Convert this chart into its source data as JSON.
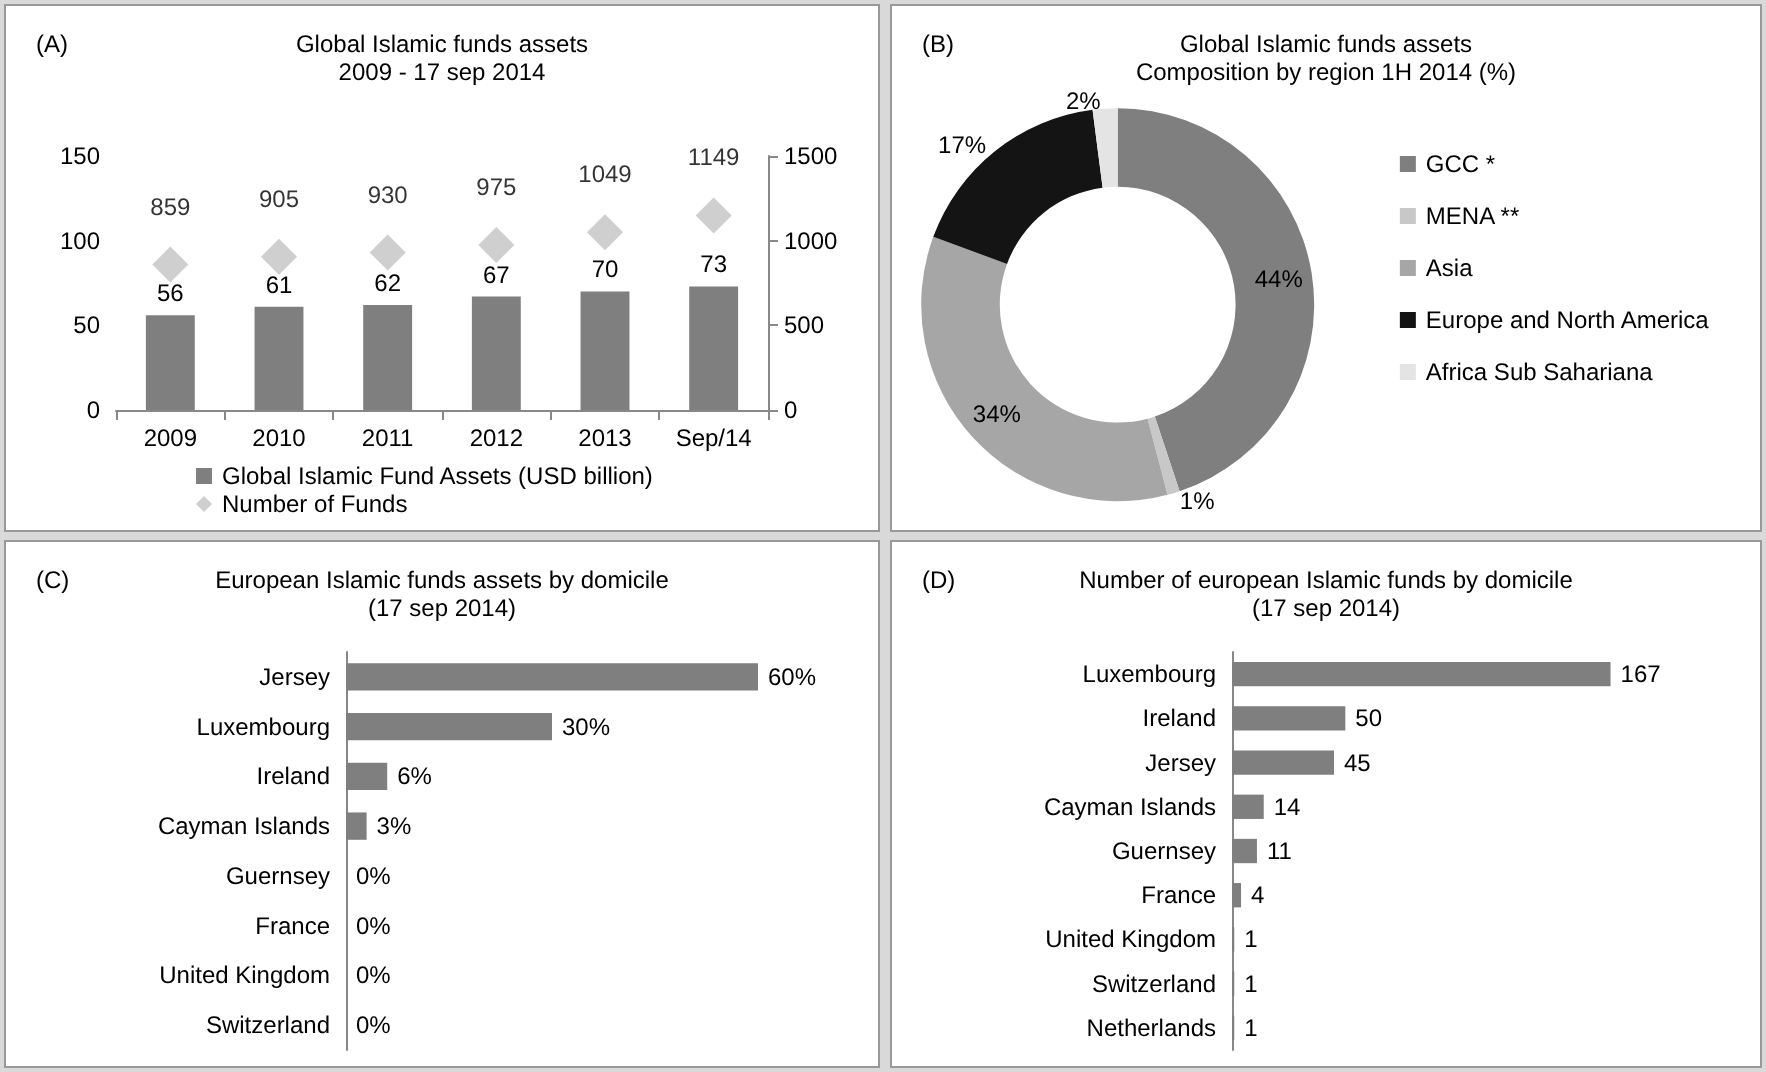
{
  "chart_data": [
    {
      "type": "bar",
      "title": "Global Islamic funds assets",
      "subtitle": "2009 - 17 sep 2014",
      "annotations": [
        "(A)"
      ],
      "categories": [
        "2009",
        "2010",
        "2011",
        "2012",
        "2013",
        "Sep/14"
      ],
      "series": [
        {
          "type": "bar",
          "name": "Global Islamic Fund Assets (USD billion)",
          "color": "#7f7f7f",
          "values": [
            56,
            61,
            62,
            67,
            70,
            73
          ]
        },
        {
          "type": "scatter",
          "axis": "y2",
          "name": "Number of Funds",
          "color": "#c3c3c3",
          "values": [
            859,
            905,
            930,
            975,
            1049,
            1149
          ]
        }
      ],
      "marker": "diamond",
      "data_labels": true,
      "legend": "bottom",
      "ylim": [
        0,
        150
      ],
      "yticks": [
        0,
        50,
        100,
        150
      ],
      "y2lim": [
        0,
        1500
      ],
      "y2ticks": [
        0,
        500,
        1000,
        1500
      ]
    },
    {
      "type": "donut",
      "title": "Global Islamic funds assets",
      "subtitle": "Composition by region 1H 2014 (%)",
      "annotations": [
        "(B)"
      ],
      "categories": [
        "GCC *",
        "MENA **",
        "Asia",
        "Europe and North America",
        "Africa Sub Sahariana"
      ],
      "values": [
        44,
        1,
        34,
        17,
        2
      ],
      "colors": [
        "#7f7f7f",
        "#c8c8c8",
        "#a6a6a6",
        "#141414",
        "#e4e4e4"
      ],
      "value_labels": [
        "44%",
        "1%",
        "34%",
        "17%",
        "2%"
      ],
      "legend": "right"
    },
    {
      "type": "bar",
      "orientation": "horizontal",
      "title": "European Islamic funds assets by domicile",
      "subtitle": "(17 sep 2014)",
      "annotations": [
        "(C)"
      ],
      "categories": [
        "Jersey",
        "Luxembourg",
        "Ireland",
        "Cayman Islands",
        "Guernsey",
        "France",
        "United Kingdom",
        "Switzerland"
      ],
      "values": [
        60,
        30,
        6,
        3,
        0,
        0,
        0,
        0
      ],
      "value_labels": [
        "60%",
        "30%",
        "6%",
        "3%",
        "0%",
        "0%",
        "0%",
        "0%"
      ],
      "color": "#7f7f7f"
    },
    {
      "type": "bar",
      "orientation": "horizontal",
      "title": "Number of european Islamic funds by domicile",
      "subtitle": "(17 sep 2014)",
      "annotations": [
        "(D)"
      ],
      "categories": [
        "Luxembourg",
        "Ireland",
        "Jersey",
        "Cayman Islands",
        "Guernsey",
        "France",
        "United Kingdom",
        "Switzerland",
        "Netherlands"
      ],
      "values": [
        167,
        50,
        45,
        14,
        11,
        4,
        1,
        1,
        1
      ],
      "data_labels": true,
      "color": "#7f7f7f"
    }
  ]
}
